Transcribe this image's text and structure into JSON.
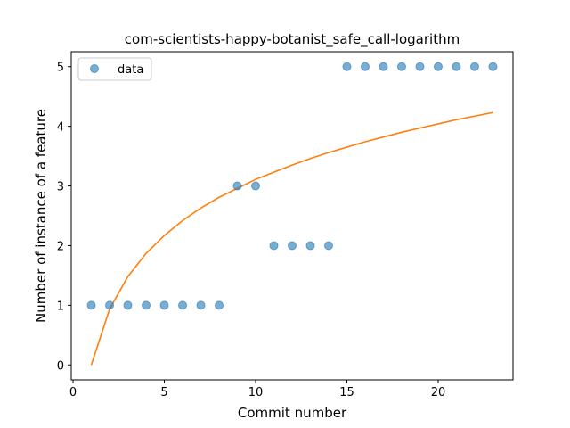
{
  "chart_data": {
    "type": "scatter",
    "title": "com-scientists-happy-botanist_safe_call-logarithm",
    "xlabel": "Commit number",
    "ylabel": "Number of instance of a feature",
    "xlim": [
      -0.1,
      24.1
    ],
    "ylim": [
      -0.25,
      5.25
    ],
    "xticks": [
      0,
      5,
      10,
      15,
      20
    ],
    "yticks": [
      0,
      1,
      2,
      3,
      4,
      5
    ],
    "grid": false,
    "legend": {
      "position": "top-left",
      "entries": [
        "data"
      ]
    },
    "colors": {
      "data": "#1f77b4",
      "fit": "#ff7f0e"
    },
    "series": [
      {
        "name": "data",
        "type": "scatter",
        "x": [
          1,
          2,
          3,
          4,
          5,
          6,
          7,
          8,
          9,
          10,
          11,
          12,
          13,
          14,
          15,
          16,
          17,
          18,
          19,
          20,
          21,
          22,
          23
        ],
        "y": [
          1,
          1,
          1,
          1,
          1,
          1,
          1,
          1,
          3,
          3,
          2,
          2,
          2,
          2,
          5,
          5,
          5,
          5,
          5,
          5,
          5,
          5,
          5
        ]
      },
      {
        "type": "line",
        "x": [
          1,
          2,
          3,
          4,
          5,
          6,
          7,
          8,
          9,
          10,
          11,
          12,
          13,
          14,
          15,
          16,
          17,
          18,
          19,
          20,
          21,
          22,
          23
        ],
        "y": [
          0,
          0.935,
          1.48,
          1.87,
          2.17,
          2.42,
          2.63,
          2.81,
          2.96,
          3.11,
          3.23,
          3.35,
          3.46,
          3.56,
          3.65,
          3.74,
          3.82,
          3.9,
          3.97,
          4.04,
          4.11,
          4.17,
          4.23
        ]
      }
    ]
  }
}
